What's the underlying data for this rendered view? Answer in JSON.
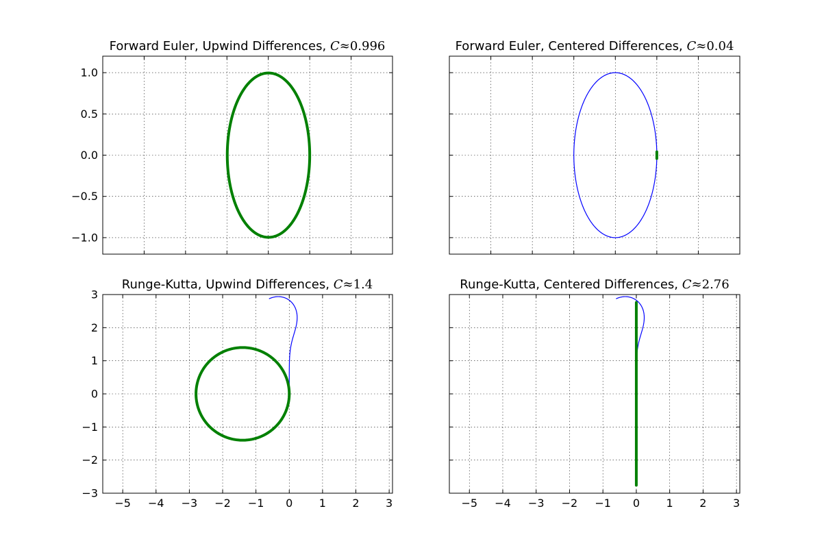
{
  "colors": {
    "boundary": "#0000ff",
    "eigenvalues": "#008000",
    "axes": "#000000",
    "background": "#ffffff"
  },
  "chart_data": [
    {
      "type": "line",
      "title_text": "Forward Euler, Upwind Differences, ",
      "title_symbol": "C",
      "title_approx": "≈",
      "title_value": "0.996",
      "xlim": [
        -5,
        2
      ],
      "ylim": [
        -1.2,
        1.2
      ],
      "xticks": [
        -5,
        -4,
        -3,
        -2,
        -1,
        0,
        1,
        2
      ],
      "yticks": [
        -1.0,
        -0.5,
        0.0,
        0.5,
        1.0
      ],
      "ytick_labels": [
        "−1.0",
        "−0.5",
        "0.0",
        "0.5",
        "1.0"
      ],
      "show_xtick_labels": false,
      "show_ytick_labels": true,
      "grid": true,
      "series": [
        {
          "role": "stability-boundary",
          "shape": "circle",
          "center": [
            -1,
            0
          ],
          "radius": 1,
          "color": "#0000ff"
        },
        {
          "role": "eigenvalues",
          "shape": "circle",
          "center": [
            -0.996,
            0
          ],
          "radius": 0.996,
          "color": "#008000"
        }
      ]
    },
    {
      "type": "line",
      "title_text": "Forward Euler, Centered Differences, ",
      "title_symbol": "C",
      "title_approx": "≈",
      "title_value": "0.04",
      "xlim": [
        -5,
        2
      ],
      "ylim": [
        -1.2,
        1.2
      ],
      "xticks": [
        -5,
        -4,
        -3,
        -2,
        -1,
        0,
        1,
        2
      ],
      "yticks": [
        -1.0,
        -0.5,
        0.0,
        0.5,
        1.0
      ],
      "ytick_labels": [
        "−1.0",
        "−0.5",
        "0.0",
        "0.5",
        "1.0"
      ],
      "show_xtick_labels": false,
      "show_ytick_labels": false,
      "grid": true,
      "series": [
        {
          "role": "stability-boundary",
          "shape": "circle",
          "center": [
            -1,
            0
          ],
          "radius": 1,
          "color": "#0000ff"
        },
        {
          "role": "eigenvalues",
          "shape": "segment",
          "x": [
            0,
            0
          ],
          "y": [
            -0.04,
            0.04
          ],
          "color": "#008000"
        }
      ]
    },
    {
      "type": "line",
      "title_text": "Runge-Kutta, Upwind Differences, ",
      "title_symbol": "C",
      "title_approx": "≈",
      "title_value": "1.4",
      "xlim": [
        -5.6,
        3.1
      ],
      "ylim": [
        -3,
        3
      ],
      "xticks": [
        -5,
        -4,
        -3,
        -2,
        -1,
        0,
        1,
        2,
        3
      ],
      "xtick_labels": [
        "−5",
        "−4",
        "−3",
        "−2",
        "−1",
        "0",
        "1",
        "2",
        "3"
      ],
      "yticks": [
        -3,
        -2,
        -1,
        0,
        1,
        2,
        3
      ],
      "ytick_labels": [
        "−3",
        "−2",
        "−1",
        "0",
        "1",
        "2",
        "3"
      ],
      "show_xtick_labels": true,
      "show_ytick_labels": true,
      "grid": true,
      "series": [
        {
          "role": "stability-boundary",
          "shape": "rk4-region",
          "color": "#0000ff"
        },
        {
          "role": "eigenvalues",
          "shape": "circle",
          "center": [
            -1.4,
            0
          ],
          "radius": 1.4,
          "color": "#008000"
        }
      ]
    },
    {
      "type": "line",
      "title_text": "Runge-Kutta, Centered Differences, ",
      "title_symbol": "C",
      "title_approx": "≈",
      "title_value": "2.76",
      "xlim": [
        -5.6,
        3.1
      ],
      "ylim": [
        -3,
        3
      ],
      "xticks": [
        -5,
        -4,
        -3,
        -2,
        -1,
        0,
        1,
        2,
        3
      ],
      "xtick_labels": [
        "−5",
        "−4",
        "−3",
        "−2",
        "−1",
        "0",
        "1",
        "2",
        "3"
      ],
      "yticks": [
        -3,
        -2,
        -1,
        0,
        1,
        2,
        3
      ],
      "ytick_labels": [
        "−3",
        "−2",
        "−1",
        "0",
        "1",
        "2",
        "3"
      ],
      "show_xtick_labels": true,
      "show_ytick_labels": false,
      "grid": true,
      "series": [
        {
          "role": "stability-boundary",
          "shape": "rk4-region",
          "color": "#0000ff"
        },
        {
          "role": "eigenvalues",
          "shape": "segment",
          "x": [
            0,
            0
          ],
          "y": [
            -2.76,
            2.76
          ],
          "color": "#008000"
        }
      ]
    }
  ]
}
